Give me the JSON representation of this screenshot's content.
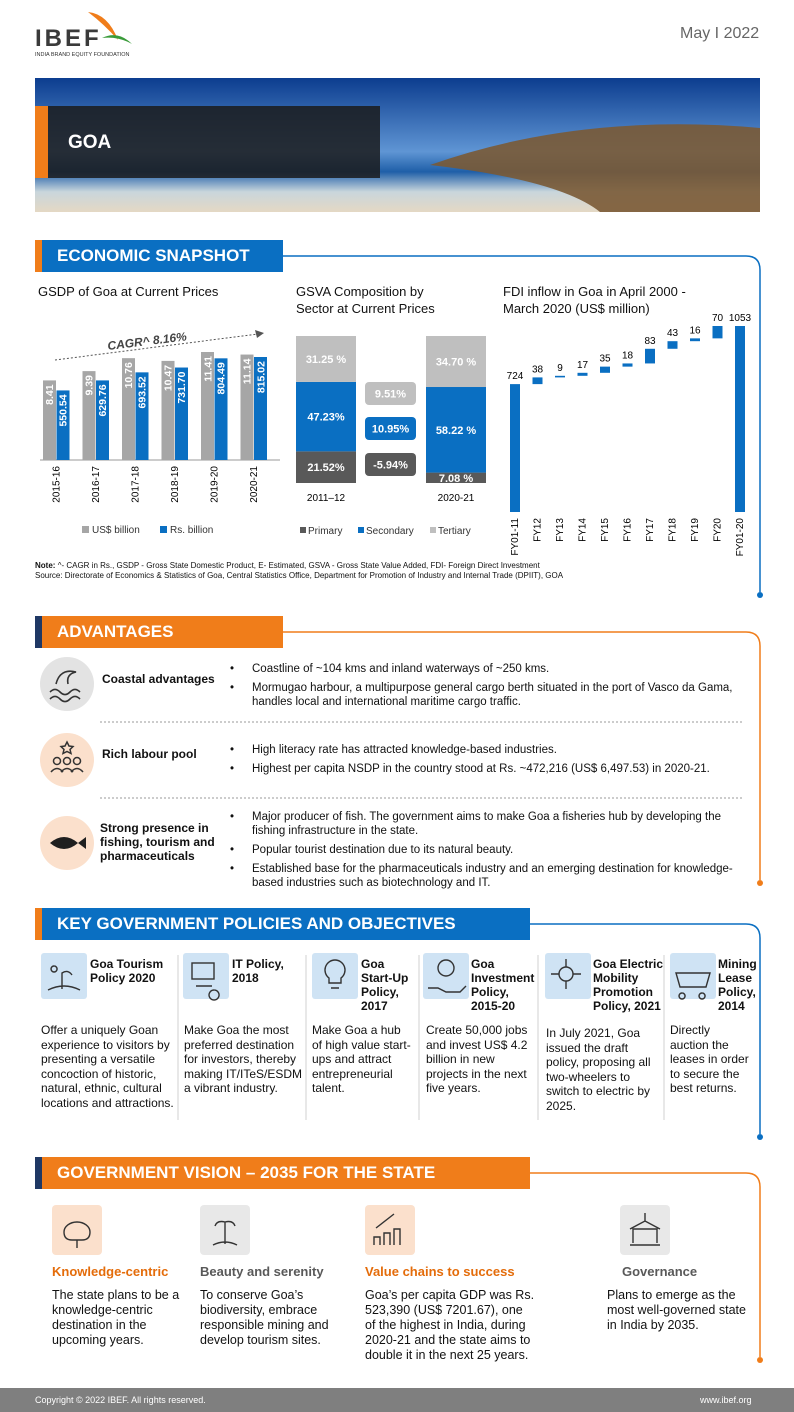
{
  "header": {
    "logo": "IBEF",
    "logo_tagline": "INDIA BRAND EQUITY FOUNDATION",
    "date": "May I 2022",
    "banner_title": "GOA"
  },
  "snapshot": {
    "title": "ECONOMIC SNAPSHOT",
    "note_label": "Note:",
    "note": "^- CAGR in Rs., GSDP - Gross State Domestic Product, E- Estimated, GSVA - Gross State Value Added, FDI- Foreign Direct Investment",
    "source": "Source: Directorate of Economics & Statistics of Goa, Central Statistics Office, Department for Promotion of Industry and Internal Trade (DPIIT), GOA"
  },
  "chart_data": [
    {
      "type": "bar",
      "title": "GSDP of Goa at Current Prices",
      "annotation": "CAGR^ 8.16%",
      "categories": [
        "2015-16",
        "2016-17",
        "2017-18",
        "2018-19",
        "2019-20",
        "2020-21"
      ],
      "series": [
        {
          "name": "US$ billion",
          "color": "#a6a6a6",
          "values": [
            8.41,
            9.39,
            10.76,
            10.47,
            11.41,
            11.14
          ]
        },
        {
          "name": "Rs. billion",
          "color": "#0a6fc2",
          "values": [
            550.54,
            629.76,
            693.52,
            731.7,
            804.49,
            815.02
          ],
          "value_labels": [
            "550.54",
            "629.76",
            "693.52",
            "731.70",
            "804.49",
            "815.02"
          ]
        }
      ]
    },
    {
      "type": "stacked-bar",
      "title": "GSVA Composition by Sector at Current Prices",
      "categories": [
        "2011–12",
        "2020-21"
      ],
      "series": [
        {
          "name": "Primary",
          "color": "#595959",
          "values": [
            21.52,
            7.08
          ],
          "value_labels": [
            "21.52%",
            "7.08 %"
          ],
          "change": -5.94,
          "change_label": "-5.94%"
        },
        {
          "name": "Secondary",
          "color": "#0a6fc2",
          "values": [
            47.23,
            58.22
          ],
          "value_labels": [
            "47.23%",
            "58.22 %"
          ],
          "change": 10.95,
          "change_label": "10.95%"
        },
        {
          "name": "Tertiary",
          "color": "#bfbfbf",
          "values": [
            31.25,
            34.7
          ],
          "value_labels": [
            "31.25 %",
            "34.70 %"
          ],
          "change": 9.51,
          "change_label": "9.51%"
        }
      ]
    },
    {
      "type": "waterfall",
      "title": "FDI inflow in Goa in April 2000 -March 2020 (US$ million)",
      "color": "#0a6fc2",
      "categories": [
        "FY01-11",
        "FY12",
        "FY13",
        "FY14",
        "FY15",
        "FY16",
        "FY17",
        "FY18",
        "FY19",
        "FY20",
        "FY01-20"
      ],
      "values": [
        724,
        38,
        9,
        17,
        35,
        18,
        83,
        43,
        16,
        70,
        1053
      ]
    }
  ],
  "advantages": {
    "title": "ADVANTAGES",
    "items": [
      {
        "label": "Coastal advantages",
        "points": [
          "Coastline of ~104 kms and inland waterways of ~250 kms.",
          "Mormugao harbour, a multipurpose general cargo berth situated in the port of Vasco da Gama, handles local and international maritime cargo traffic."
        ]
      },
      {
        "label": "Rich labour pool",
        "points": [
          "High literacy rate has attracted knowledge-based industries.",
          "Highest per capita NSDP in the country stood at Rs. ~472,216 (US$ 6,497.53) in 2020-21."
        ]
      },
      {
        "label": "Strong presence in fishing, tourism and pharmaceuticals",
        "points": [
          "Major producer of fish. The government aims to make Goa a fisheries hub by developing the fishing infrastructure in the state.",
          "Popular tourist destination due to its natural beauty.",
          "Established base for the pharmaceuticals industry and an emerging destination for knowledge-based industries such as biotechnology and IT."
        ]
      }
    ]
  },
  "policies": {
    "title": "KEY GOVERNMENT POLICIES AND OBJECTIVES",
    "items": [
      {
        "title": "Goa Tourism Policy 2020",
        "text": "Offer a uniquely Goan experience to visitors by presenting a versatile concoction of historic, natural, ethnic, cultural locations and attractions."
      },
      {
        "title": "IT Policy, 2018",
        "text": "Make Goa the most preferred destination for investors, thereby making IT/ITeS/ESDM a vibrant industry."
      },
      {
        "title": "Goa Start-Up Policy, 2017",
        "text": "Make Goa a hub of high value start-ups and attract entrepreneurial talent."
      },
      {
        "title": "Goa Investment Policy, 2015-20",
        "text": "Create 50,000 jobs and invest US$ 4.2 billion in new projects in the next five years."
      },
      {
        "title": "Goa Electric Mobility Promotion Policy, 2021",
        "text": "In July 2021, Goa issued the draft policy, proposing all two-wheelers to switch to electric by 2025."
      },
      {
        "title": "Mining Lease Policy, 2014",
        "text": "Directly auction the leases in order to secure the best returns."
      }
    ]
  },
  "vision": {
    "title": "GOVERNMENT VISION – 2035 FOR THE STATE",
    "items": [
      {
        "title": "Knowledge-centric",
        "text": "The state plans to be a knowledge-centric destination in the upcoming years."
      },
      {
        "title": "Beauty and serenity",
        "text": "To conserve Goa’s biodiversity, embrace responsible mining and develop tourism sites."
      },
      {
        "title": "Value chains to success",
        "text": "Goa’s per capita GDP was Rs. 523,390 (US$ 7201.67), one of the highest in India, during 2020-21 and the state aims to double it in the next 25 years."
      },
      {
        "title": "Governance",
        "text": "Plans to emerge as the most well-governed state in India by 2035."
      }
    ]
  },
  "footer": {
    "copyright": "Copyright © 2022 IBEF. All rights reserved.",
    "url": "www.ibef.org"
  }
}
